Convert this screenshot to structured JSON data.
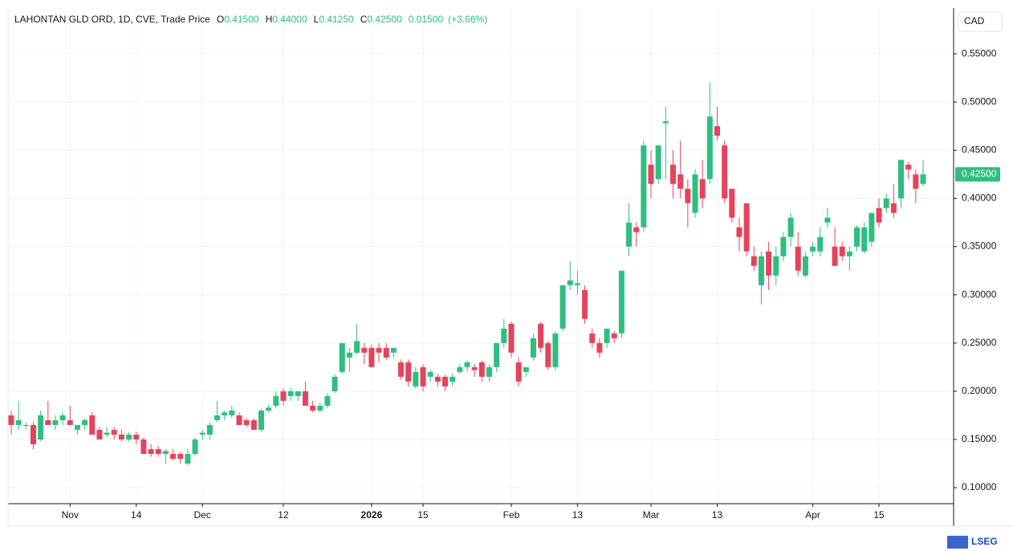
{
  "chart_data": {
    "type": "candlestick",
    "title": "LAHONTAN GLD ORD, 1D, CVE, Trade Price",
    "ohlc_legend": [
      {
        "label": "O",
        "value": "0.41500"
      },
      {
        "label": "H",
        "value": "0.44000"
      },
      {
        "label": "L",
        "value": "0.41250"
      },
      {
        "label": "C",
        "value": "0.42500"
      }
    ],
    "change": "0.01500",
    "change_pct": "(+3.66%)",
    "currency": "CAD",
    "last_price_label": "0.42500",
    "last_price": 0.425,
    "brand": "LSEG",
    "up_color": "#2dbf80",
    "down_color": "#e5435c",
    "grid": true,
    "ylim": [
      0.0834,
      0.5975
    ],
    "yticks": [
      {
        "value": 0.1,
        "label": "0.10000"
      },
      {
        "value": 0.15,
        "label": "0.15000"
      },
      {
        "value": 0.2,
        "label": "0.20000"
      },
      {
        "value": 0.25,
        "label": "0.25000"
      },
      {
        "value": 0.3,
        "label": "0.30000"
      },
      {
        "value": 0.35,
        "label": "0.35000"
      },
      {
        "value": 0.4,
        "label": "0.40000"
      },
      {
        "value": 0.45,
        "label": "0.45000"
      },
      {
        "value": 0.5,
        "label": "0.50000"
      },
      {
        "value": 0.55,
        "label": "0.55000"
      }
    ],
    "categories": [
      null,
      null,
      null,
      null,
      null,
      null,
      null,
      null,
      "Nov",
      null,
      null,
      null,
      null,
      null,
      null,
      null,
      null,
      "14",
      null,
      null,
      null,
      null,
      null,
      null,
      null,
      null,
      "Dec",
      null,
      null,
      null,
      null,
      null,
      null,
      null,
      null,
      null,
      null,
      "12",
      null,
      null,
      null,
      null,
      null,
      null,
      null,
      null,
      null,
      null,
      null,
      "2026",
      null,
      null,
      null,
      null,
      null,
      null,
      "15",
      null,
      null,
      null,
      null,
      null,
      null,
      null,
      null,
      null,
      null,
      null,
      "Feb",
      null,
      null,
      null,
      null,
      null,
      null,
      null,
      null,
      "13",
      null,
      null,
      null,
      null,
      null,
      null,
      null,
      null,
      null,
      "Mar",
      null,
      null,
      null,
      null,
      null,
      null,
      null,
      null,
      "13",
      null,
      null,
      null,
      null,
      null,
      null,
      null,
      null,
      null,
      null,
      null,
      null,
      "Apr",
      null,
      null,
      null,
      null,
      null,
      null,
      null,
      null,
      "15",
      null,
      null,
      null,
      null,
      null,
      null
    ],
    "candles": [
      [
        0.175,
        0.18,
        0.155,
        0.165
      ],
      [
        0.165,
        0.19,
        0.16,
        0.17
      ],
      [
        0.165,
        0.168,
        0.16,
        0.165
      ],
      [
        0.165,
        0.168,
        0.14,
        0.145
      ],
      [
        0.15,
        0.18,
        0.148,
        0.175
      ],
      [
        0.17,
        0.19,
        0.165,
        0.165
      ],
      [
        0.165,
        0.175,
        0.16,
        0.17
      ],
      [
        0.17,
        0.178,
        0.165,
        0.175
      ],
      [
        0.17,
        0.185,
        0.165,
        0.165
      ],
      [
        0.16,
        0.165,
        0.155,
        0.165
      ],
      [
        0.165,
        0.172,
        0.16,
        0.17
      ],
      [
        0.175,
        0.178,
        0.155,
        0.155
      ],
      [
        0.16,
        0.163,
        0.15,
        0.15
      ],
      [
        0.155,
        0.163,
        0.152,
        0.157
      ],
      [
        0.16,
        0.163,
        0.15,
        0.155
      ],
      [
        0.155,
        0.16,
        0.148,
        0.15
      ],
      [
        0.15,
        0.158,
        0.148,
        0.155
      ],
      [
        0.155,
        0.158,
        0.145,
        0.15
      ],
      [
        0.15,
        0.152,
        0.135,
        0.135
      ],
      [
        0.14,
        0.145,
        0.132,
        0.135
      ],
      [
        0.14,
        0.143,
        0.132,
        0.135
      ],
      [
        0.135,
        0.14,
        0.125,
        0.138
      ],
      [
        0.135,
        0.14,
        0.128,
        0.13
      ],
      [
        0.135,
        0.137,
        0.125,
        0.13
      ],
      [
        0.125,
        0.14,
        0.123,
        0.135
      ],
      [
        0.135,
        0.152,
        0.133,
        0.15
      ],
      [
        0.155,
        0.16,
        0.15,
        0.157
      ],
      [
        0.155,
        0.168,
        0.15,
        0.165
      ],
      [
        0.17,
        0.19,
        0.168,
        0.175
      ],
      [
        0.175,
        0.18,
        0.17,
        0.178
      ],
      [
        0.175,
        0.185,
        0.172,
        0.18
      ],
      [
        0.175,
        0.178,
        0.165,
        0.165
      ],
      [
        0.17,
        0.172,
        0.163,
        0.165
      ],
      [
        0.17,
        0.172,
        0.16,
        0.16
      ],
      [
        0.16,
        0.182,
        0.158,
        0.18
      ],
      [
        0.18,
        0.186,
        0.178,
        0.183
      ],
      [
        0.185,
        0.2,
        0.182,
        0.195
      ],
      [
        0.2,
        0.203,
        0.185,
        0.19
      ],
      [
        0.195,
        0.203,
        0.19,
        0.2
      ],
      [
        0.195,
        0.2,
        0.19,
        0.2
      ],
      [
        0.2,
        0.21,
        0.185,
        0.185
      ],
      [
        0.185,
        0.19,
        0.178,
        0.18
      ],
      [
        0.18,
        0.188,
        0.178,
        0.185
      ],
      [
        0.185,
        0.198,
        0.183,
        0.195
      ],
      [
        0.2,
        0.218,
        0.198,
        0.215
      ],
      [
        0.22,
        0.25,
        0.218,
        0.25
      ],
      [
        0.235,
        0.245,
        0.22,
        0.24
      ],
      [
        0.24,
        0.27,
        0.238,
        0.252
      ],
      [
        0.245,
        0.25,
        0.228,
        0.24
      ],
      [
        0.245,
        0.248,
        0.225,
        0.225
      ],
      [
        0.245,
        0.25,
        0.23,
        0.24
      ],
      [
        0.245,
        0.25,
        0.232,
        0.235
      ],
      [
        0.24,
        0.245,
        0.235,
        0.245
      ],
      [
        0.23,
        0.233,
        0.212,
        0.215
      ],
      [
        0.23,
        0.233,
        0.205,
        0.21
      ],
      [
        0.205,
        0.225,
        0.203,
        0.22
      ],
      [
        0.225,
        0.228,
        0.2,
        0.205
      ],
      [
        0.215,
        0.222,
        0.21,
        0.22
      ],
      [
        0.215,
        0.218,
        0.205,
        0.21
      ],
      [
        0.215,
        0.217,
        0.2,
        0.205
      ],
      [
        0.21,
        0.218,
        0.205,
        0.215
      ],
      [
        0.22,
        0.228,
        0.218,
        0.225
      ],
      [
        0.225,
        0.232,
        0.22,
        0.23
      ],
      [
        0.225,
        0.228,
        0.215,
        0.222
      ],
      [
        0.23,
        0.232,
        0.21,
        0.215
      ],
      [
        0.215,
        0.228,
        0.21,
        0.225
      ],
      [
        0.225,
        0.25,
        0.22,
        0.25
      ],
      [
        0.25,
        0.275,
        0.245,
        0.265
      ],
      [
        0.27,
        0.272,
        0.235,
        0.24
      ],
      [
        0.23,
        0.235,
        0.205,
        0.21
      ],
      [
        0.22,
        0.225,
        0.215,
        0.225
      ],
      [
        0.235,
        0.26,
        0.232,
        0.255
      ],
      [
        0.27,
        0.272,
        0.24,
        0.245
      ],
      [
        0.25,
        0.252,
        0.222,
        0.225
      ],
      [
        0.225,
        0.262,
        0.222,
        0.26
      ],
      [
        0.265,
        0.31,
        0.262,
        0.31
      ],
      [
        0.31,
        0.335,
        0.305,
        0.315
      ],
      [
        0.31,
        0.325,
        0.3,
        0.312
      ],
      [
        0.305,
        0.31,
        0.27,
        0.275
      ],
      [
        0.26,
        0.265,
        0.245,
        0.25
      ],
      [
        0.25,
        0.255,
        0.235,
        0.24
      ],
      [
        0.25,
        0.265,
        0.245,
        0.265
      ],
      [
        0.26,
        0.262,
        0.25,
        0.255
      ],
      [
        0.26,
        0.325,
        0.255,
        0.325
      ],
      [
        0.35,
        0.395,
        0.34,
        0.375
      ],
      [
        0.37,
        0.375,
        0.35,
        0.365
      ],
      [
        0.37,
        0.46,
        0.365,
        0.455
      ],
      [
        0.435,
        0.45,
        0.4,
        0.415
      ],
      [
        0.42,
        0.455,
        0.415,
        0.455
      ],
      [
        0.478,
        0.495,
        0.42,
        0.48
      ],
      [
        0.435,
        0.45,
        0.4,
        0.415
      ],
      [
        0.425,
        0.46,
        0.4,
        0.41
      ],
      [
        0.41,
        0.42,
        0.37,
        0.395
      ],
      [
        0.385,
        0.43,
        0.38,
        0.425
      ],
      [
        0.42,
        0.44,
        0.39,
        0.4
      ],
      [
        0.42,
        0.52,
        0.415,
        0.485
      ],
      [
        0.475,
        0.495,
        0.46,
        0.465
      ],
      [
        0.455,
        0.46,
        0.395,
        0.4
      ],
      [
        0.41,
        0.41,
        0.375,
        0.38
      ],
      [
        0.37,
        0.38,
        0.345,
        0.36
      ],
      [
        0.395,
        0.395,
        0.34,
        0.345
      ],
      [
        0.34,
        0.35,
        0.325,
        0.33
      ],
      [
        0.31,
        0.345,
        0.29,
        0.34
      ],
      [
        0.345,
        0.355,
        0.305,
        0.32
      ],
      [
        0.32,
        0.35,
        0.31,
        0.34
      ],
      [
        0.34,
        0.365,
        0.335,
        0.36
      ],
      [
        0.36,
        0.385,
        0.35,
        0.38
      ],
      [
        0.35,
        0.365,
        0.32,
        0.325
      ],
      [
        0.32,
        0.345,
        0.318,
        0.34
      ],
      [
        0.345,
        0.355,
        0.34,
        0.35
      ],
      [
        0.345,
        0.37,
        0.34,
        0.36
      ],
      [
        0.375,
        0.39,
        0.37,
        0.38
      ],
      [
        0.35,
        0.37,
        0.33,
        0.33
      ],
      [
        0.35,
        0.355,
        0.335,
        0.34
      ],
      [
        0.34,
        0.35,
        0.325,
        0.345
      ],
      [
        0.35,
        0.372,
        0.345,
        0.37
      ],
      [
        0.345,
        0.375,
        0.343,
        0.37
      ],
      [
        0.355,
        0.385,
        0.35,
        0.385
      ],
      [
        0.39,
        0.4,
        0.37,
        0.375
      ],
      [
        0.39,
        0.405,
        0.385,
        0.4
      ],
      [
        0.395,
        0.415,
        0.38,
        0.385
      ],
      [
        0.4,
        0.44,
        0.39,
        0.44
      ],
      [
        0.435,
        0.438,
        0.42,
        0.43
      ],
      [
        0.425,
        0.43,
        0.395,
        0.41
      ],
      [
        0.415,
        0.44,
        0.4125,
        0.425
      ]
    ]
  }
}
